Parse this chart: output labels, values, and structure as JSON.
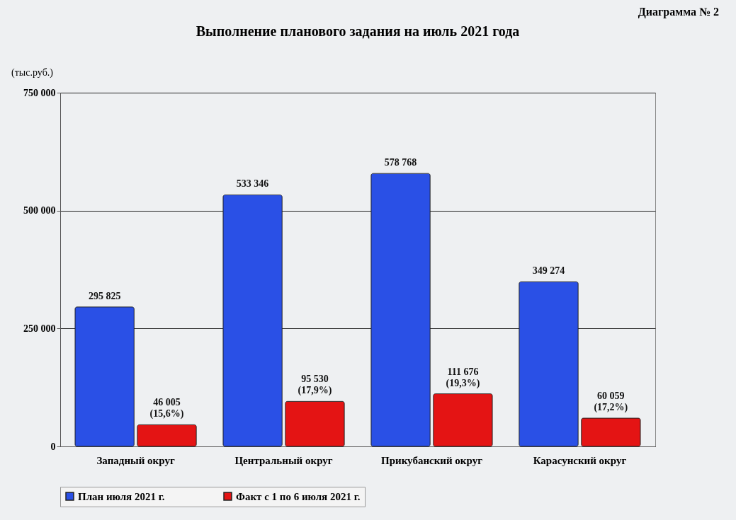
{
  "chart_data": {
    "type": "bar",
    "title": "Выполнение планового задания на июль 2021 года",
    "ylabel": "(тыс.руб.)",
    "annotations": [
      "Диаграмма № 2"
    ],
    "categories": [
      "Западный округ",
      "Центральный округ",
      "Прикубанский округ",
      "Карасунский округ"
    ],
    "series": [
      {
        "name": "План июля 2021 г.",
        "color": "#2a50e6",
        "values": [
          295825,
          533346,
          578768,
          349274
        ],
        "value_labels": [
          "295 825",
          "533 346",
          "578 768",
          "349 274"
        ]
      },
      {
        "name": "Факт с 1 по 6 июля 2021 г.",
        "color": "#e41414",
        "values": [
          46005,
          95530,
          111676,
          60059
        ],
        "value_labels": [
          "46 005\n(15,6%)",
          "95 530\n(17,9%)",
          "111 676\n(19,3%)",
          "60 059\n(17,2%)"
        ]
      }
    ],
    "ylim": [
      0,
      750000
    ],
    "yticks": [
      0,
      {
        "value": 250000,
        "label": "250 000"
      },
      {
        "value": 500000,
        "label": "500 000"
      },
      {
        "value": 750000,
        "label": "750 000"
      }
    ],
    "grid": "y",
    "legend": "bottom"
  }
}
